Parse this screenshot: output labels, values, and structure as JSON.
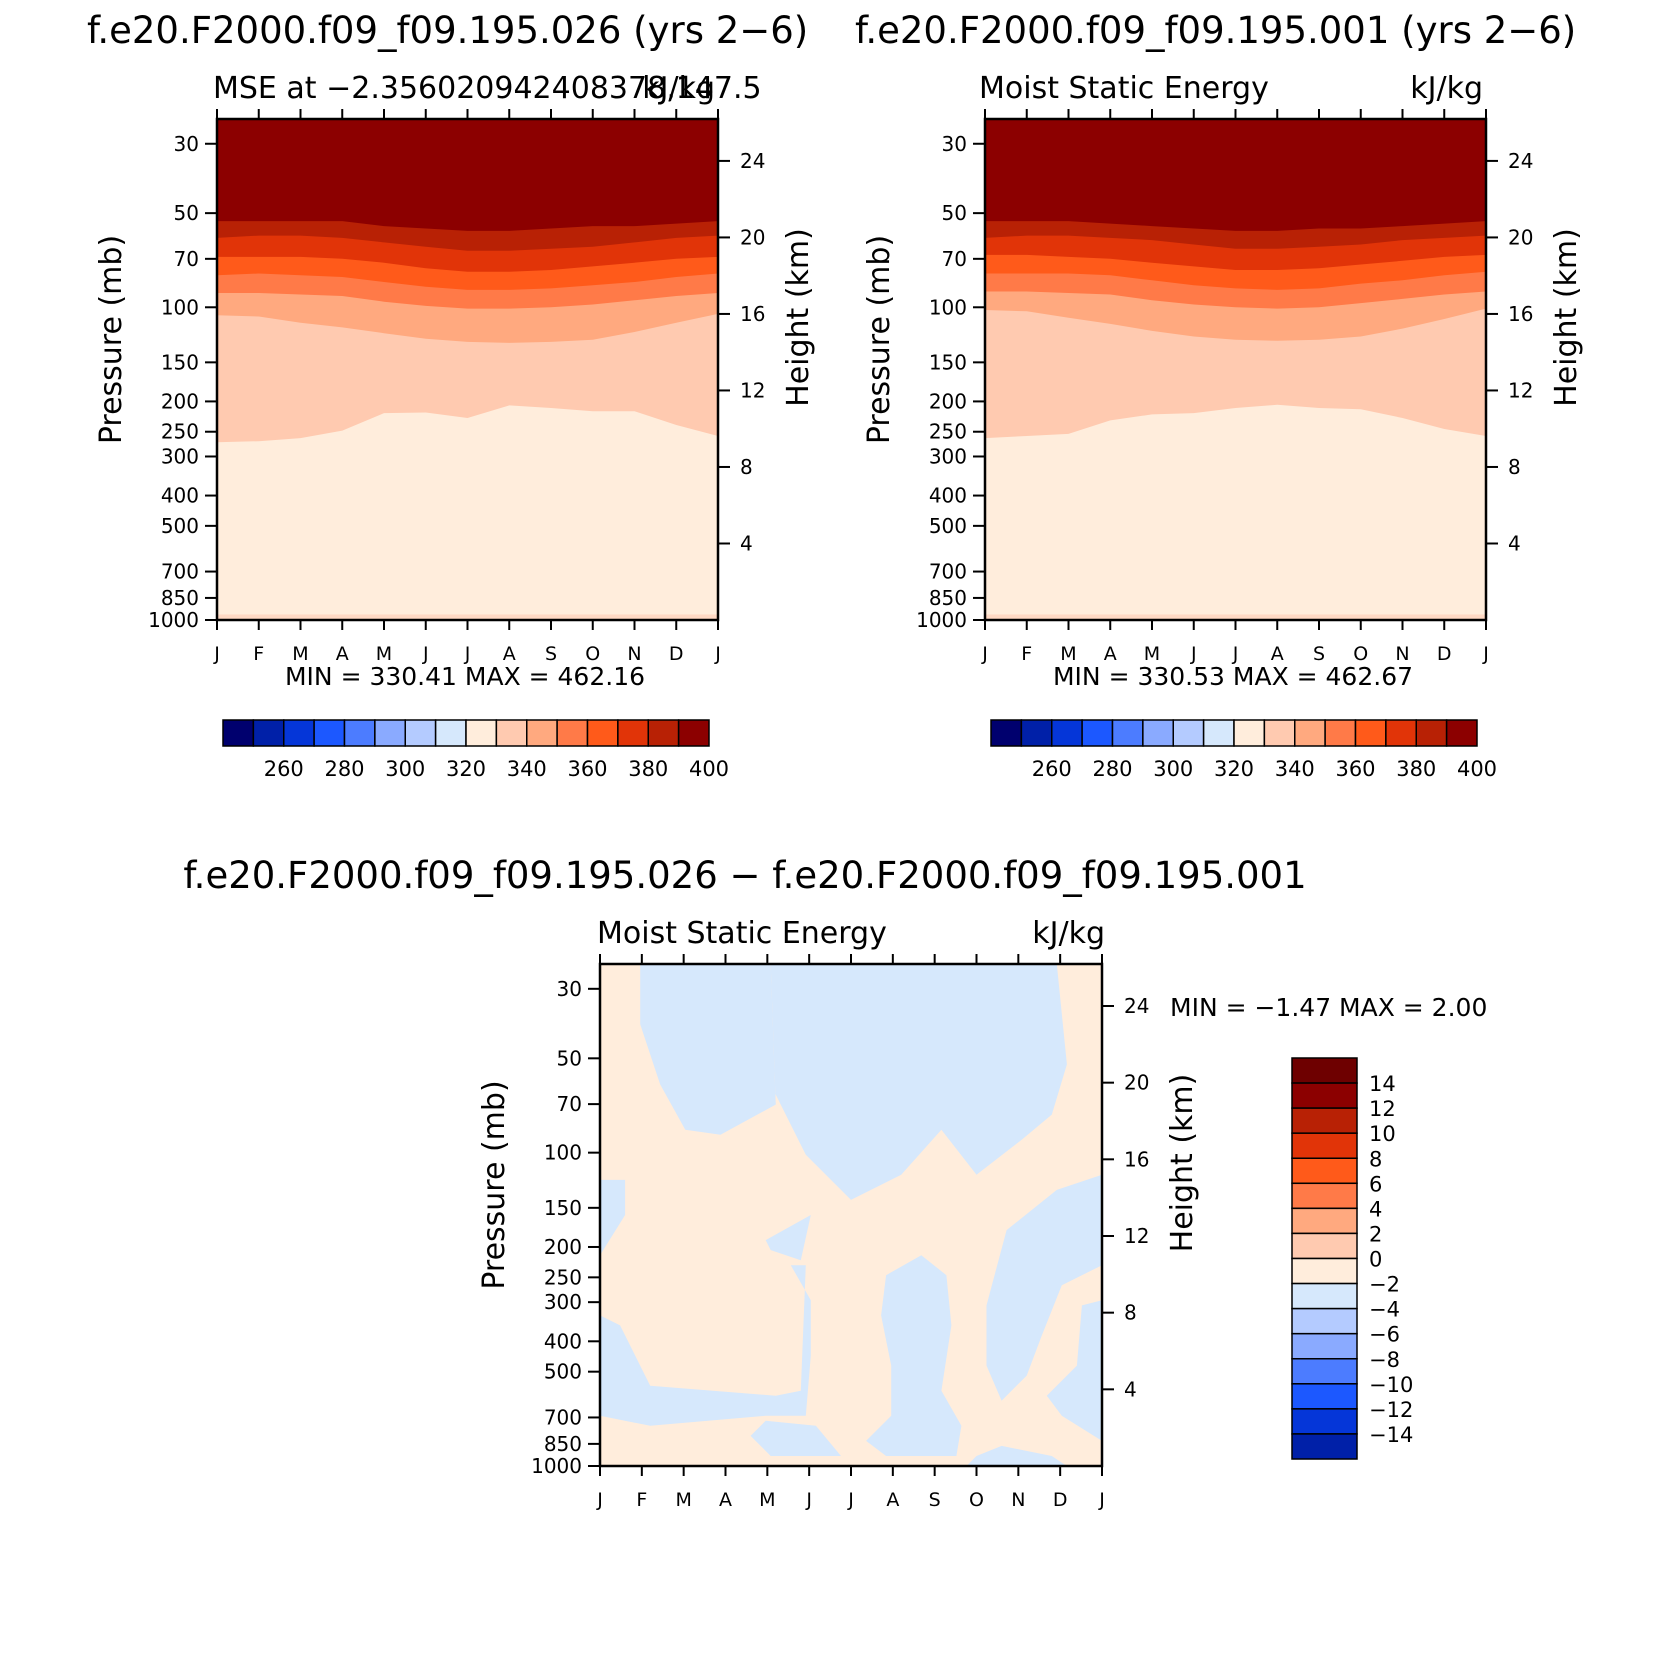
{
  "figure": {
    "case_a": "f.e20.F2000.f09_f09.195.026",
    "case_b": "f.e20.F2000.f09_f09.195.001",
    "period_label": "(yrs 2−6)",
    "diff_title": "f.e20.F2000.f09_f09.195.026 − f.e20.F2000.f09_f09.195.001"
  },
  "chart_data": [
    {
      "type": "heatmap",
      "title": "f.e20.F2000.f09_f09.195.026 (yrs 2−6)",
      "subtitle_left": "MSE at −2.356020942408378,147.5",
      "subtitle_right": "kJ/kg",
      "xlabel": "",
      "ylabel": "Pressure (mb)",
      "ylabel_right": "Height (km)",
      "x_categories": [
        "J",
        "F",
        "M",
        "A",
        "M",
        "J",
        "J",
        "A",
        "S",
        "O",
        "N",
        "D",
        "J"
      ],
      "y_ticks": [
        30,
        50,
        70,
        100,
        150,
        200,
        250,
        300,
        400,
        500,
        700,
        850,
        1000
      ],
      "y_right_ticks": [
        24,
        20,
        16,
        12,
        8,
        4
      ],
      "y_scale": "log",
      "ylim": [
        1000,
        25
      ],
      "min_max_text": "MIN = 330.41 MAX = 462.16",
      "min": 330.41,
      "max": 462.16,
      "contour_levels": [
        250,
        260,
        270,
        280,
        290,
        300,
        310,
        320,
        330,
        340,
        350,
        360,
        370,
        380,
        390,
        400,
        410
      ],
      "colorbar_labels": [
        260,
        280,
        300,
        320,
        340,
        360,
        380,
        400
      ],
      "boundaries": [
        {
          "level": 340,
          "p": [
            270,
            268,
            262,
            248,
            218,
            217,
            226,
            206,
            210,
            215,
            215,
            238,
            258
          ]
        },
        {
          "level": 350,
          "p": [
            106,
            107,
            112,
            116,
            121,
            126,
            129,
            130,
            129,
            127,
            120,
            112,
            105
          ]
        },
        {
          "level": 360,
          "p": [
            90,
            90,
            91,
            92,
            96,
            99,
            101,
            101,
            100,
            98,
            95,
            92,
            90
          ]
        },
        {
          "level": 370,
          "p": [
            79,
            78,
            79,
            80,
            83,
            86,
            88,
            88,
            87,
            85,
            83,
            80,
            78
          ]
        },
        {
          "level": 380,
          "p": [
            69,
            69,
            69,
            70,
            72,
            75,
            77,
            77,
            76,
            74,
            72,
            70,
            69
          ]
        },
        {
          "level": 390,
          "p": [
            60,
            59,
            59,
            60,
            62,
            64,
            66,
            66,
            65,
            64,
            62,
            60,
            59
          ]
        },
        {
          "level": 400,
          "p": [
            53,
            53,
            53,
            53,
            55,
            56,
            57,
            57,
            56,
            55,
            55,
            54,
            53
          ]
        }
      ]
    },
    {
      "type": "heatmap",
      "title": "f.e20.F2000.f09_f09.195.001 (yrs 2−6)",
      "subtitle_left": "Moist Static Energy",
      "subtitle_right": "kJ/kg",
      "xlabel": "",
      "ylabel": "Pressure (mb)",
      "ylabel_right": "Height (km)",
      "x_categories": [
        "J",
        "F",
        "M",
        "A",
        "M",
        "J",
        "J",
        "A",
        "S",
        "O",
        "N",
        "D",
        "J"
      ],
      "y_ticks": [
        30,
        50,
        70,
        100,
        150,
        200,
        250,
        300,
        400,
        500,
        700,
        850,
        1000
      ],
      "y_right_ticks": [
        24,
        20,
        16,
        12,
        8,
        4
      ],
      "y_scale": "log",
      "ylim": [
        1000,
        25
      ],
      "min_max_text": "MIN = 330.53 MAX = 462.67",
      "min": 330.53,
      "max": 462.67,
      "contour_levels": [
        250,
        260,
        270,
        280,
        290,
        300,
        310,
        320,
        330,
        340,
        350,
        360,
        370,
        380,
        390,
        400,
        410
      ],
      "colorbar_labels": [
        260,
        280,
        300,
        320,
        340,
        360,
        380,
        400
      ],
      "boundaries": [
        {
          "level": 340,
          "p": [
            262,
            258,
            254,
            230,
            220,
            218,
            210,
            205,
            210,
            212,
            226,
            245,
            258
          ]
        },
        {
          "level": 350,
          "p": [
            102,
            103,
            108,
            113,
            119,
            124,
            127,
            128,
            127,
            124,
            117,
            109,
            101
          ]
        },
        {
          "level": 360,
          "p": [
            89,
            89,
            90,
            91,
            95,
            98,
            100,
            101,
            100,
            97,
            94,
            91,
            89
          ]
        },
        {
          "level": 370,
          "p": [
            78,
            78,
            78,
            79,
            82,
            85,
            87,
            88,
            87,
            84,
            82,
            79,
            77
          ]
        },
        {
          "level": 380,
          "p": [
            68,
            68,
            69,
            70,
            72,
            74,
            76,
            76,
            75,
            73,
            71,
            69,
            68
          ]
        },
        {
          "level": 390,
          "p": [
            60,
            59,
            59,
            60,
            61,
            63,
            65,
            65,
            64,
            63,
            61,
            60,
            59
          ]
        },
        {
          "level": 400,
          "p": [
            53,
            53,
            53,
            54,
            55,
            56,
            57,
            57,
            56,
            56,
            55,
            54,
            53
          ]
        }
      ]
    },
    {
      "type": "heatmap",
      "title": "f.e20.F2000.f09_f09.195.026 − f.e20.F2000.f09_f09.195.001",
      "subtitle_left": "Moist Static Energy",
      "subtitle_right": "kJ/kg",
      "xlabel": "",
      "ylabel": "Pressure (mb)",
      "ylabel_right": "Height (km)",
      "x_categories": [
        "J",
        "F",
        "M",
        "A",
        "M",
        "J",
        "J",
        "A",
        "S",
        "O",
        "N",
        "D",
        "J"
      ],
      "y_ticks": [
        30,
        50,
        70,
        100,
        150,
        200,
        250,
        300,
        400,
        500,
        700,
        850,
        1000
      ],
      "y_right_ticks": [
        24,
        20,
        16,
        12,
        8,
        4
      ],
      "y_scale": "log",
      "ylim": [
        1000,
        25
      ],
      "min_max_text": "MIN = −1.47 MAX = 2.00",
      "min": -1.47,
      "max": 2.0,
      "contour_levels": [
        -16,
        -14,
        -12,
        -10,
        -8,
        -6,
        -4,
        -2,
        0,
        2,
        4,
        6,
        8,
        10,
        12,
        14,
        16
      ],
      "colorbar_labels": [
        14,
        12,
        10,
        8,
        6,
        4,
        2,
        0,
        -2,
        -4,
        -6,
        -8,
        -10,
        -12,
        -14
      ],
      "negative_regions": [
        [
          [
            0.08,
            0
          ],
          [
            0.34,
            0
          ],
          [
            0.35,
            0.28
          ],
          [
            0.24,
            0.34
          ],
          [
            0.17,
            0.33
          ],
          [
            0.12,
            0.24
          ],
          [
            0.08,
            0.12
          ]
        ],
        [
          [
            0.34,
            0
          ],
          [
            0.62,
            0
          ],
          [
            0.62,
            0.1
          ],
          [
            0.58,
            0
          ],
          [
            0.69,
            0
          ],
          [
            0.91,
            0
          ],
          [
            0.93,
            0.2
          ],
          [
            0.9,
            0.3
          ],
          [
            0.84,
            0.35
          ],
          [
            0.75,
            0.42
          ],
          [
            0.68,
            0.33
          ],
          [
            0.6,
            0.42
          ],
          [
            0.5,
            0.47
          ],
          [
            0.41,
            0.38
          ],
          [
            0.34,
            0.24
          ],
          [
            0.35,
            0.28
          ]
        ],
        [
          [
            0,
            0.43
          ],
          [
            0.05,
            0.43
          ],
          [
            0.05,
            0.5
          ],
          [
            0,
            0.58
          ]
        ],
        [
          [
            0.33,
            0.55
          ],
          [
            0.42,
            0.5
          ],
          [
            0.4,
            0.59
          ],
          [
            0.34,
            0.57
          ]
        ],
        [
          [
            0.38,
            0.6
          ],
          [
            0.41,
            0.6
          ],
          [
            0.4,
            0.85
          ],
          [
            0.35,
            0.86
          ],
          [
            0.1,
            0.84
          ],
          [
            0.04,
            0.72
          ],
          [
            0,
            0.7
          ],
          [
            0,
            0.9
          ],
          [
            0.1,
            0.92
          ],
          [
            0.33,
            0.9
          ],
          [
            0.41,
            0.9
          ],
          [
            0.42,
            0.78
          ],
          [
            0.42,
            0.67
          ]
        ],
        [
          [
            0.57,
            0.62
          ],
          [
            0.64,
            0.58
          ],
          [
            0.69,
            0.62
          ],
          [
            0.7,
            0.72
          ],
          [
            0.68,
            0.85
          ],
          [
            0.72,
            0.92
          ],
          [
            0.71,
            0.98
          ],
          [
            0.57,
            0.98
          ],
          [
            0.53,
            0.95
          ],
          [
            0.58,
            0.9
          ],
          [
            0.58,
            0.8
          ],
          [
            0.56,
            0.7
          ]
        ],
        [
          [
            1,
            0.42
          ],
          [
            0.91,
            0.45
          ],
          [
            0.81,
            0.53
          ],
          [
            0.77,
            0.68
          ],
          [
            0.77,
            0.8
          ],
          [
            0.8,
            0.87
          ],
          [
            0.85,
            0.82
          ],
          [
            0.88,
            0.74
          ],
          [
            0.92,
            0.64
          ],
          [
            1,
            0.6
          ]
        ],
        [
          [
            0.33,
            0.91
          ],
          [
            0.43,
            0.92
          ],
          [
            0.48,
            0.98
          ],
          [
            0.34,
            0.98
          ],
          [
            0.3,
            0.94
          ]
        ],
        [
          [
            0.96,
            0.68
          ],
          [
            1,
            0.67
          ],
          [
            1,
            0.95
          ],
          [
            0.92,
            0.9
          ],
          [
            0.89,
            0.86
          ],
          [
            0.95,
            0.8
          ]
        ],
        [
          [
            0.75,
            0.98
          ],
          [
            0.8,
            0.96
          ],
          [
            0.9,
            0.98
          ],
          [
            0.93,
            1
          ],
          [
            0.73,
            1
          ]
        ]
      ]
    }
  ]
}
